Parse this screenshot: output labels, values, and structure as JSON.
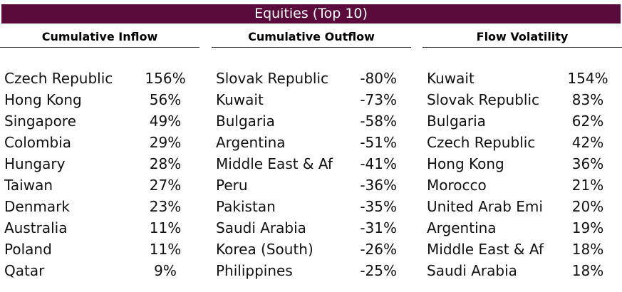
{
  "title": "Equities (Top 10)",
  "columns": [
    {
      "header": "Cumulative Inflow",
      "rows": [
        [
          "Czech Republic",
          "156%"
        ],
        [
          "Hong Kong",
          "56%"
        ],
        [
          "Singapore",
          "49%"
        ],
        [
          "Colombia",
          "29%"
        ],
        [
          "Hungary",
          "28%"
        ],
        [
          "Taiwan",
          "27%"
        ],
        [
          "Denmark",
          "23%"
        ],
        [
          "Australia",
          "11%"
        ],
        [
          "Poland",
          "11%"
        ],
        [
          "Qatar",
          "9%"
        ]
      ]
    },
    {
      "header": "Cumulative Outflow",
      "rows": [
        [
          "Slovak Republic",
          "-80%"
        ],
        [
          "Kuwait",
          "-73%"
        ],
        [
          "Bulgaria",
          "-58%"
        ],
        [
          "Argentina",
          "-51%"
        ],
        [
          "Middle East & Af",
          "-41%"
        ],
        [
          "Peru",
          "-36%"
        ],
        [
          "Pakistan",
          "-35%"
        ],
        [
          "Saudi Arabia",
          "-31%"
        ],
        [
          "Korea (South)",
          "-26%"
        ],
        [
          "Philippines",
          "-25%"
        ]
      ]
    },
    {
      "header": "Flow Volatility",
      "rows": [
        [
          "Kuwait",
          "154%"
        ],
        [
          "Slovak Republic",
          "83%"
        ],
        [
          "Bulgaria",
          "62%"
        ],
        [
          "Czech Republic",
          "42%"
        ],
        [
          "Hong Kong",
          "36%"
        ],
        [
          "Morocco",
          "21%"
        ],
        [
          "United Arab Emi",
          "20%"
        ],
        [
          "Argentina",
          "19%"
        ],
        [
          "Middle East & Af",
          "18%"
        ],
        [
          "Saudi Arabia",
          "18%"
        ]
      ]
    }
  ]
}
